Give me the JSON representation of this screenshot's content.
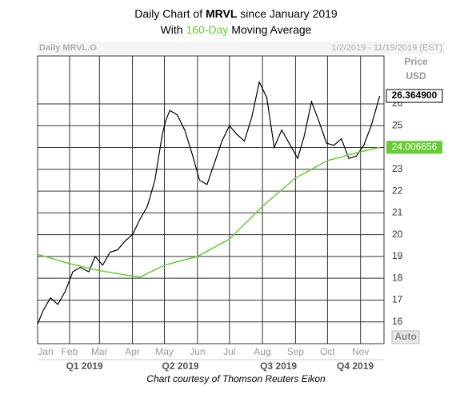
{
  "chart_data": {
    "type": "stock",
    "title": {
      "prefix": "Daily Chart of",
      "ticker": "MRVL",
      "suffix": "since January 2019"
    },
    "subtitle": {
      "prefix": "With",
      "highlight": "160-Day",
      "suffix": "Moving Average"
    },
    "symbol_label": "Daily MRVL.O",
    "date_range": "1/2/2019 - 11/19/2019 (EST)",
    "y_axis_title": [
      "Price",
      "USD"
    ],
    "scale_mode": "Auto",
    "caption": "Chart courtesy of Thomson Reuters Eikon",
    "xlim": [
      2,
      327
    ],
    "ylim": [
      15,
      28.2
    ],
    "yticks": [
      16,
      17,
      18,
      19,
      20,
      21,
      22,
      23,
      24,
      25,
      26
    ],
    "xticks": [
      {
        "value": 1,
        "label": "Jan"
      },
      {
        "value": 32,
        "label": "Feb"
      },
      {
        "value": 60,
        "label": "Mar"
      },
      {
        "value": 91,
        "label": "Apr"
      },
      {
        "value": 121,
        "label": "May"
      },
      {
        "value": 152,
        "label": "Jun"
      },
      {
        "value": 182,
        "label": "Jul"
      },
      {
        "value": 213,
        "label": "Aug"
      },
      {
        "value": 244,
        "label": "Sep"
      },
      {
        "value": 274,
        "label": "Oct"
      },
      {
        "value": 305,
        "label": "Nov"
      }
    ],
    "quarters": [
      {
        "value": 46,
        "label": "Q1 2019"
      },
      {
        "value": 136,
        "label": "Q2 2019"
      },
      {
        "value": 228,
        "label": "Q3 2019"
      },
      {
        "value": 300,
        "label": "Q4 2019"
      }
    ],
    "grid": true,
    "series": [
      {
        "color": "#000000",
        "x": [
          2,
          7,
          14,
          21,
          28,
          35,
          42,
          50,
          56,
          63,
          70,
          77,
          84,
          91,
          98,
          105,
          112,
          119,
          122,
          126,
          133,
          140,
          147,
          154,
          161,
          168,
          175,
          182,
          189,
          196,
          203,
          210,
          217,
          224,
          231,
          238,
          246,
          252,
          259,
          266,
          273,
          280,
          287,
          294,
          301,
          308,
          315,
          323
        ],
        "values": [
          15.9,
          16.5,
          17.1,
          16.8,
          17.4,
          18.3,
          18.5,
          18.3,
          19.0,
          18.6,
          19.2,
          19.3,
          19.7,
          20.0,
          20.7,
          21.3,
          22.5,
          24.6,
          25.2,
          25.7,
          25.5,
          24.8,
          23.7,
          22.5,
          22.3,
          23.3,
          24.3,
          25.0,
          24.6,
          24.3,
          25.4,
          27.0,
          26.3,
          24.0,
          24.8,
          24.2,
          23.5,
          24.5,
          26.1,
          25.2,
          24.2,
          24.1,
          24.4,
          23.5,
          23.6,
          24.1,
          25.0,
          26.3649
        ]
      },
      {
        "color": "#66cc33",
        "x": [
          2,
          30,
          60,
          91,
          98,
          121,
          152,
          182,
          213,
          244,
          274,
          305,
          323
        ],
        "values": [
          19.1,
          18.7,
          18.35,
          18.1,
          18.05,
          18.6,
          19.0,
          19.8,
          21.3,
          22.6,
          23.4,
          23.8,
          24.006656
        ]
      }
    ],
    "last_price": {
      "value": 26.3649,
      "label": "26.364900"
    },
    "last_average": {
      "value": 24.006656,
      "label": "24.006656"
    }
  }
}
